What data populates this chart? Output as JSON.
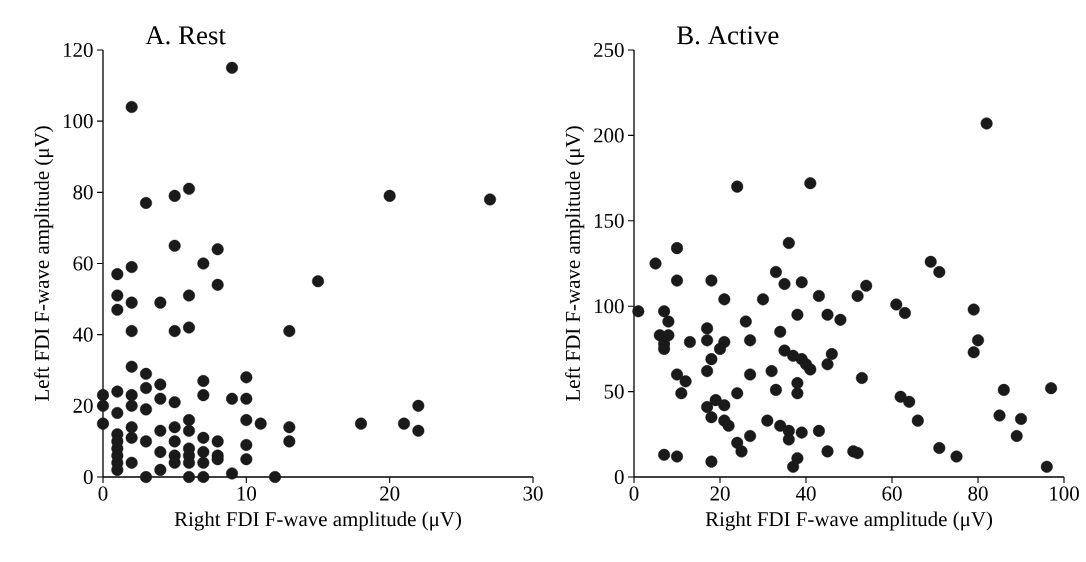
{
  "chart_data": [
    {
      "type": "scatter",
      "title": "A. Rest",
      "xlabel": "Right FDI F-wave amplitude (μV)",
      "ylabel": "Left FDI F-wave amplitude (μV)",
      "color": "#1a1a1a",
      "xlim": [
        0,
        30
      ],
      "ylim": [
        0,
        120
      ],
      "xticks": [
        0,
        10,
        20,
        30
      ],
      "yticks": [
        0,
        20,
        40,
        60,
        80,
        100,
        120
      ],
      "x": [
        9,
        2,
        3,
        5,
        6,
        5,
        8,
        7,
        1,
        2,
        1,
        1,
        2,
        4,
        6,
        8,
        2,
        5,
        6,
        20,
        27,
        15,
        13,
        2,
        3,
        3,
        4,
        4,
        5,
        7,
        7,
        9,
        10,
        10,
        10,
        11,
        10,
        10,
        13,
        13,
        0,
        0,
        0,
        1,
        1,
        2,
        2,
        3,
        1,
        1,
        1,
        1,
        1,
        1,
        2,
        2,
        2,
        3,
        3,
        4,
        4,
        4,
        5,
        5,
        5,
        5,
        6,
        6,
        6,
        6,
        6,
        6,
        7,
        7,
        7,
        7,
        8,
        8,
        8,
        9,
        12,
        18,
        21,
        22,
        22
      ],
      "values": [
        115,
        104,
        77,
        79,
        81,
        65,
        64,
        60,
        57,
        59,
        51,
        47,
        49,
        49,
        51,
        54,
        41,
        41,
        42,
        79,
        78,
        55,
        41,
        31,
        29,
        25,
        26,
        22,
        21,
        27,
        23,
        22,
        28,
        22,
        16,
        15,
        9,
        5,
        14,
        10,
        23,
        20,
        15,
        24,
        18,
        23,
        20,
        19,
        12,
        10,
        8,
        6,
        4,
        2,
        14,
        11,
        4,
        10,
        0,
        13,
        7,
        2,
        14,
        10,
        6,
        4,
        16,
        13,
        8,
        6,
        4,
        0,
        11,
        7,
        4,
        0,
        10,
        6,
        5,
        1,
        0,
        15,
        15,
        20,
        13
      ]
    },
    {
      "type": "scatter",
      "title": "B. Active",
      "xlabel": "Right FDI F-wave amplitude (μV)",
      "ylabel": "Left FDI F-wave amplitude (μV)",
      "color": "#1a1a1a",
      "xlim": [
        0,
        100
      ],
      "ylim": [
        0,
        250
      ],
      "xticks": [
        0,
        20,
        40,
        60,
        80,
        100
      ],
      "yticks": [
        0,
        50,
        100,
        150,
        200,
        250
      ],
      "x": [
        1,
        5,
        10,
        10,
        7,
        8,
        6,
        8,
        7,
        7,
        13,
        10,
        12,
        11,
        7,
        10,
        18,
        21,
        17,
        17,
        18,
        20,
        21,
        17,
        17,
        19,
        21,
        18,
        21,
        22,
        18,
        24,
        24,
        26,
        27,
        27,
        27,
        24,
        25,
        30,
        33,
        35,
        34,
        32,
        33,
        31,
        34,
        36,
        36,
        36,
        38,
        39,
        41,
        35,
        37,
        39,
        40,
        41,
        38,
        38,
        39,
        43,
        43,
        45,
        46,
        45,
        45,
        48,
        38,
        37,
        52,
        54,
        53,
        51,
        52,
        61,
        63,
        62,
        64,
        66,
        69,
        71,
        71,
        75,
        82,
        79,
        80,
        79,
        86,
        85,
        90,
        89,
        97,
        96
      ],
      "values": [
        97,
        125,
        134,
        115,
        97,
        91,
        83,
        83,
        78,
        75,
        79,
        60,
        56,
        49,
        13,
        12,
        115,
        104,
        87,
        80,
        69,
        75,
        79,
        62,
        41,
        45,
        42,
        35,
        33,
        30,
        9,
        170,
        49,
        91,
        80,
        60,
        24,
        20,
        15,
        104,
        120,
        113,
        85,
        62,
        51,
        33,
        30,
        27,
        22,
        137,
        95,
        114,
        172,
        74,
        71,
        69,
        66,
        63,
        55,
        49,
        26,
        27,
        106,
        95,
        72,
        66,
        15,
        92,
        11,
        6,
        106,
        112,
        58,
        15,
        14,
        101,
        96,
        47,
        44,
        33,
        126,
        120,
        17,
        12,
        207,
        98,
        80,
        73,
        51,
        36,
        34,
        24,
        52,
        6
      ]
    }
  ]
}
